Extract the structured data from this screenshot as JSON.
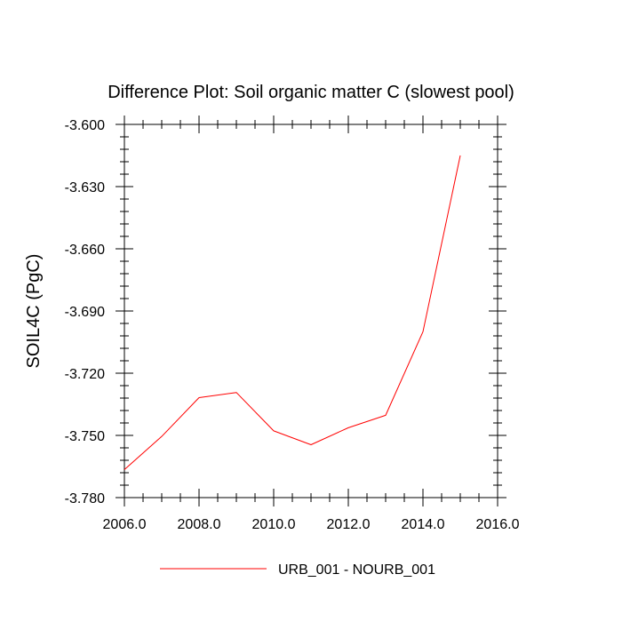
{
  "chart_data": {
    "type": "line",
    "title": "Difference Plot: Soil organic matter C (slowest pool)",
    "xlabel": "",
    "ylabel": "SOIL4C  (PgC)",
    "xlim": [
      2006.0,
      2016.0
    ],
    "ylim": [
      -3.78,
      -3.6
    ],
    "x_ticks": [
      2006.0,
      2008.0,
      2010.0,
      2012.0,
      2014.0,
      2016.0
    ],
    "x_tick_labels": [
      "2006.0",
      "2008.0",
      "2010.0",
      "2012.0",
      "2014.0",
      "2016.0"
    ],
    "y_ticks": [
      -3.6,
      -3.63,
      -3.66,
      -3.69,
      -3.72,
      -3.75,
      -3.78
    ],
    "y_tick_labels": [
      "-3.600",
      "-3.630",
      "-3.660",
      "-3.690",
      "-3.720",
      "-3.750",
      "-3.780"
    ],
    "grid": false,
    "legend_position": "bottom-center",
    "series": [
      {
        "name": "URB_001 - NOURB_001",
        "color": "#ff0000",
        "x": [
          2006,
          2007,
          2008,
          2009,
          2010,
          2011,
          2012,
          2013,
          2014,
          2015
        ],
        "y": [
          -3.7665,
          -3.7505,
          -3.7318,
          -3.7293,
          -3.7478,
          -3.7545,
          -3.7463,
          -3.7403,
          -3.7,
          -3.615
        ]
      }
    ]
  }
}
